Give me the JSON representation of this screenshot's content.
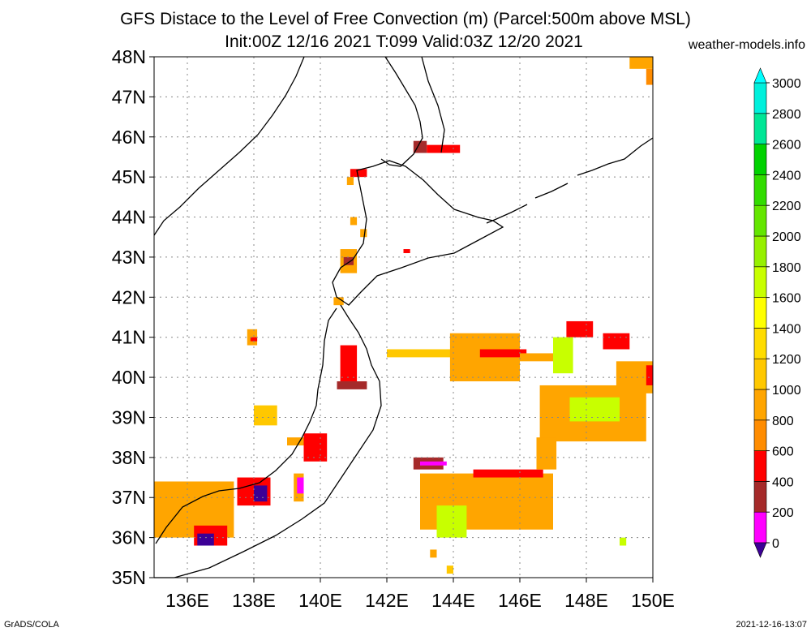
{
  "title": {
    "line1": "GFS Distace to the Level of Free Convection (m) (Parcel:500m above MSL)",
    "line2": "Init:00Z 12/16 2021 T:099 Valid:03Z 12/20 2021",
    "source": "weather-models.info"
  },
  "footer": {
    "left": "GrADS/COLA",
    "right": "2021-12-16-13:07"
  },
  "map": {
    "lon_range": [
      135,
      150
    ],
    "lat_range": [
      35,
      48
    ],
    "lon_ticks": [
      "136E",
      "138E",
      "140E",
      "142E",
      "144E",
      "146E",
      "148E",
      "150E"
    ],
    "lat_ticks": [
      "35N",
      "36N",
      "37N",
      "38N",
      "39N",
      "40N",
      "41N",
      "42N",
      "43N",
      "44N",
      "45N",
      "46N",
      "47N",
      "48N"
    ],
    "gridlines": "dotted",
    "coastline_color": "#000000"
  },
  "colorbar": {
    "labels": [
      "0",
      "200",
      "400",
      "600",
      "800",
      "1000",
      "1200",
      "1400",
      "1600",
      "1800",
      "2000",
      "2200",
      "2400",
      "2600",
      "2800",
      "3000"
    ],
    "colors": [
      "#3c0096",
      "#ff00ff",
      "#a52a2a",
      "#ff0000",
      "#ff8c00",
      "#ffa500",
      "#ffc800",
      "#ffdc00",
      "#ffff00",
      "#c8ff00",
      "#96f000",
      "#64e600",
      "#32dc00",
      "#00d200",
      "#00e696",
      "#00f0dc",
      "#00ffff"
    ]
  },
  "fields": [
    {
      "lon": [
        149.3,
        150
      ],
      "lat": [
        47.7,
        48
      ],
      "color": "#ffa500"
    },
    {
      "lon": [
        149.8,
        150
      ],
      "lat": [
        47.3,
        47.7
      ],
      "color": "#ff8c00"
    },
    {
      "lon": [
        142.8,
        143.2
      ],
      "lat": [
        45.6,
        45.9
      ],
      "color": "#a52a2a"
    },
    {
      "lon": [
        143.2,
        144.2
      ],
      "lat": [
        45.6,
        45.8
      ],
      "color": "#ff0000"
    },
    {
      "lon": [
        140.9,
        141.4
      ],
      "lat": [
        45.0,
        45.2
      ],
      "color": "#ff0000"
    },
    {
      "lon": [
        140.8,
        141.0
      ],
      "lat": [
        44.8,
        45.0
      ],
      "color": "#ffa500"
    },
    {
      "lon": [
        140.9,
        141.1
      ],
      "lat": [
        43.8,
        44.0
      ],
      "color": "#ffa500"
    },
    {
      "lon": [
        141.2,
        141.4
      ],
      "lat": [
        43.5,
        43.7
      ],
      "color": "#ffa500"
    },
    {
      "lon": [
        140.6,
        141.1
      ],
      "lat": [
        42.6,
        43.2
      ],
      "color": "#ffa500"
    },
    {
      "lon": [
        140.7,
        141.0
      ],
      "lat": [
        42.8,
        43.0
      ],
      "color": "#a52a2a"
    },
    {
      "lon": [
        142.5,
        142.7
      ],
      "lat": [
        43.1,
        43.2
      ],
      "color": "#ff0000"
    },
    {
      "lon": [
        140.4,
        140.7
      ],
      "lat": [
        41.8,
        42.0
      ],
      "color": "#ffa500"
    },
    {
      "lon": [
        142.0,
        144.0
      ],
      "lat": [
        40.5,
        40.7
      ],
      "color": "#ffc800"
    },
    {
      "lon": [
        143.9,
        146.0
      ],
      "lat": [
        39.9,
        41.1
      ],
      "color": "#ffa500"
    },
    {
      "lon": [
        144.8,
        146.2
      ],
      "lat": [
        40.5,
        40.7
      ],
      "color": "#ff0000"
    },
    {
      "lon": [
        146.0,
        147.4
      ],
      "lat": [
        40.4,
        40.6
      ],
      "color": "#ffa500"
    },
    {
      "lon": [
        147.4,
        148.2
      ],
      "lat": [
        41.0,
        41.4
      ],
      "color": "#ff0000"
    },
    {
      "lon": [
        147.0,
        147.6
      ],
      "lat": [
        40.1,
        41.0
      ],
      "color": "#c8ff00"
    },
    {
      "lon": [
        148.5,
        149.3
      ],
      "lat": [
        40.7,
        41.1
      ],
      "color": "#ff0000"
    },
    {
      "lon": [
        148.9,
        150.0
      ],
      "lat": [
        39.6,
        40.4
      ],
      "color": "#ffa500"
    },
    {
      "lon": [
        149.8,
        150.0
      ],
      "lat": [
        39.8,
        40.3
      ],
      "color": "#ff0000"
    },
    {
      "lon": [
        146.6,
        149.8
      ],
      "lat": [
        38.4,
        39.8
      ],
      "color": "#ffa500"
    },
    {
      "lon": [
        147.5,
        149.0
      ],
      "lat": [
        38.9,
        39.5
      ],
      "color": "#c8ff00"
    },
    {
      "lon": [
        140.6,
        141.1
      ],
      "lat": [
        39.9,
        40.8
      ],
      "color": "#ff0000"
    },
    {
      "lon": [
        140.5,
        141.4
      ],
      "lat": [
        39.7,
        39.9
      ],
      "color": "#a52a2a"
    },
    {
      "lon": [
        137.8,
        138.1
      ],
      "lat": [
        40.8,
        41.2
      ],
      "color": "#ffa500"
    },
    {
      "lon": [
        137.9,
        138.1
      ],
      "lat": [
        40.9,
        41.0
      ],
      "color": "#ff0000"
    },
    {
      "lon": [
        138.0,
        138.7
      ],
      "lat": [
        38.8,
        39.3
      ],
      "color": "#ffc800"
    },
    {
      "lon": [
        139.0,
        139.8
      ],
      "lat": [
        38.3,
        38.5
      ],
      "color": "#ffa500"
    },
    {
      "lon": [
        139.5,
        140.2
      ],
      "lat": [
        37.9,
        38.6
      ],
      "color": "#ff0000"
    },
    {
      "lon": [
        143.0,
        147.0
      ],
      "lat": [
        36.2,
        37.6
      ],
      "color": "#ffa500"
    },
    {
      "lon": [
        142.8,
        143.7
      ],
      "lat": [
        37.7,
        38.0
      ],
      "color": "#a52a2a"
    },
    {
      "lon": [
        143.0,
        143.8
      ],
      "lat": [
        37.8,
        37.9
      ],
      "color": "#ff00ff"
    },
    {
      "lon": [
        144.6,
        146.7
      ],
      "lat": [
        37.5,
        37.7
      ],
      "color": "#ff0000"
    },
    {
      "lon": [
        146.5,
        147.1
      ],
      "lat": [
        37.7,
        38.5
      ],
      "color": "#ffa500"
    },
    {
      "lon": [
        143.5,
        144.4
      ],
      "lat": [
        36.0,
        36.8
      ],
      "color": "#c8ff00"
    },
    {
      "lon": [
        135.0,
        137.4
      ],
      "lat": [
        36.0,
        37.4
      ],
      "color": "#ffa500"
    },
    {
      "lon": [
        136.2,
        137.2
      ],
      "lat": [
        35.8,
        36.3
      ],
      "color": "#ff0000"
    },
    {
      "lon": [
        136.3,
        136.8
      ],
      "lat": [
        35.8,
        36.1
      ],
      "color": "#3c0096"
    },
    {
      "lon": [
        137.5,
        138.5
      ],
      "lat": [
        36.8,
        37.5
      ],
      "color": "#ff0000"
    },
    {
      "lon": [
        138.0,
        138.4
      ],
      "lat": [
        36.9,
        37.3
      ],
      "color": "#3c0096"
    },
    {
      "lon": [
        139.2,
        139.5
      ],
      "lat": [
        36.9,
        37.6
      ],
      "color": "#ffa500"
    },
    {
      "lon": [
        139.3,
        139.5
      ],
      "lat": [
        37.1,
        37.5
      ],
      "color": "#ff00ff"
    },
    {
      "lon": [
        149.0,
        149.2
      ],
      "lat": [
        35.8,
        36.0
      ],
      "color": "#c8ff00"
    },
    {
      "lon": [
        143.8,
        144.0
      ],
      "lat": [
        35.1,
        35.3
      ],
      "color": "#ffc800"
    },
    {
      "lon": [
        143.3,
        143.5
      ],
      "lat": [
        35.5,
        35.7
      ],
      "color": "#ffa500"
    }
  ]
}
